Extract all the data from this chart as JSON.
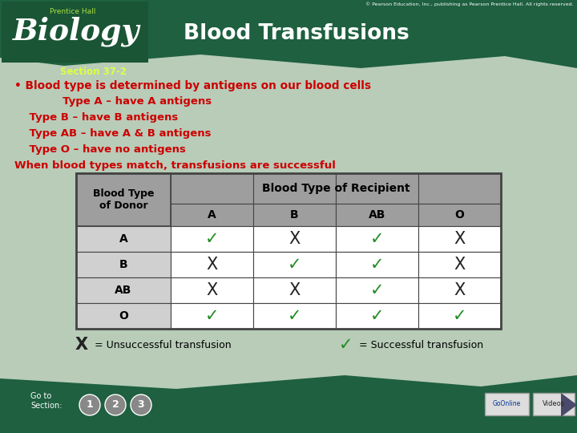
{
  "title": "Blood Transfusions",
  "section": "Section 37-2",
  "bullet1": "• Blood type is determined by antigens on our blood cells",
  "bullet2": "             Type A – have A antigens",
  "bullet3": "    Type B – have B antigens",
  "bullet4": "    Type AB – have A & B antigens",
  "bullet5": "    Type O – have no antigens",
  "bullet6": "When blood types match, transfusions are successful",
  "table_header_col": "Blood Type\nof Donor",
  "table_header_row": "Blood Type of Recipient",
  "recipient_cols": [
    "A",
    "B",
    "AB",
    "O"
  ],
  "donor_rows": [
    "A",
    "B",
    "AB",
    "O"
  ],
  "data": [
    [
      "✓",
      "X",
      "✓",
      "X"
    ],
    [
      "X",
      "✓",
      "✓",
      "X"
    ],
    [
      "X",
      "X",
      "✓",
      "X"
    ],
    [
      "✓",
      "✓",
      "✓",
      "✓"
    ]
  ],
  "legend_x": "X",
  "legend_check": "✓",
  "legend_x_text": "= Unsuccessful transfusion",
  "legend_check_text": "= Successful transfusion",
  "bg_dark_green": "#2d6b4a",
  "content_green": "#b8ccb8",
  "banner_green": "#1e6040",
  "logo_green": "#1a5535",
  "text_red": "#cc0000",
  "text_white": "#ffffff",
  "text_black": "#000000",
  "table_header_bg": "#9e9e9e",
  "table_subrow_bg": "#9e9e9e",
  "table_donor_bg": "#d0d0d0",
  "table_cell_bg": "#ffffff",
  "table_border": "#444444",
  "check_color": "#228B22",
  "x_color": "#222222",
  "section_color": "#ddff44",
  "copyright": "© Pearson Education, Inc., publishing as Pearson Prentice Hall. All rights reserved."
}
